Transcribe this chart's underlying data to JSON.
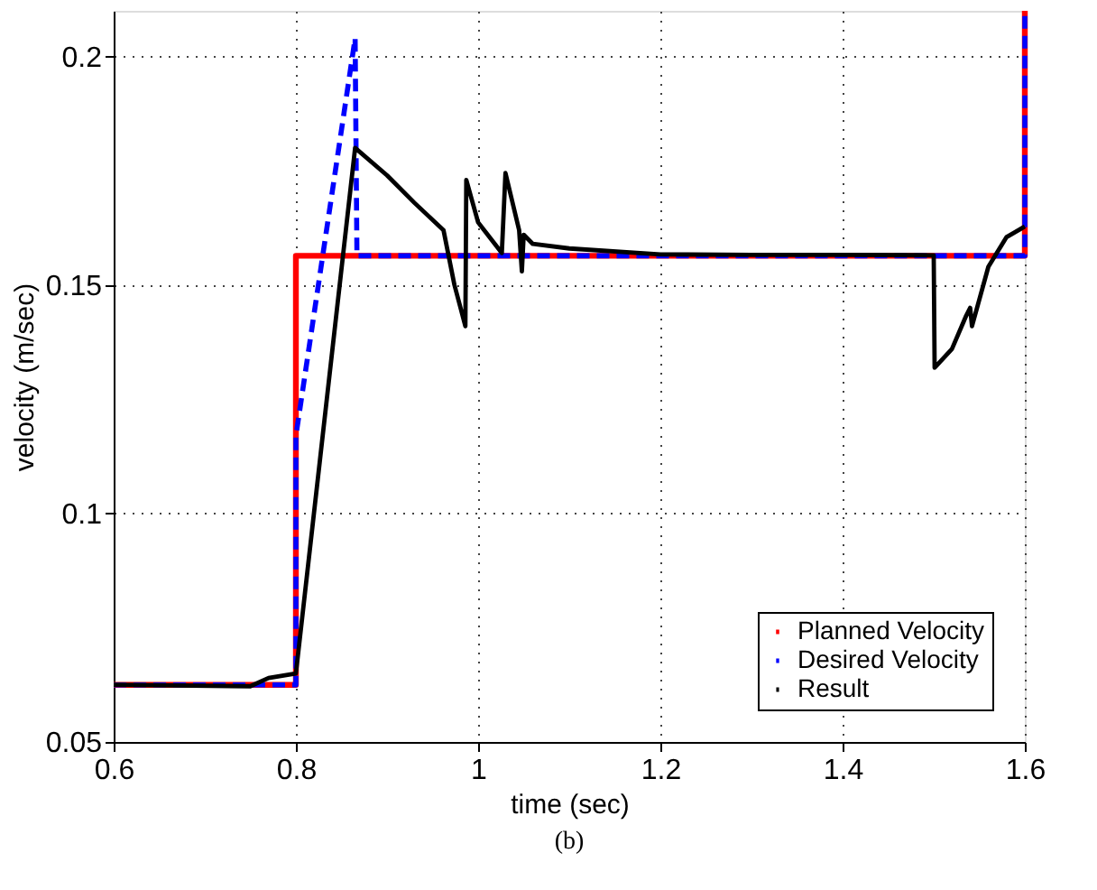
{
  "chart_data": {
    "type": "line",
    "xlabel": "time (sec)",
    "ylabel": "velocity (m/sec)",
    "xlim": [
      0.6,
      1.6
    ],
    "ylim": [
      0.05,
      0.21
    ],
    "xticks": [
      0.6,
      0.8,
      1,
      1.2,
      1.4,
      1.6
    ],
    "yticks": [
      0.05,
      0.1,
      0.15,
      0.2
    ],
    "grid": true,
    "legend": "bottom right",
    "marker": "none",
    "annotations": [
      "(b)"
    ],
    "series": [
      {
        "name": "Planned Velocity",
        "color": "#ff0000",
        "line_style": "solid",
        "x": [
          0.6,
          0.8,
          0.8,
          1.6,
          1.6
        ],
        "values": [
          0.0625,
          0.0625,
          0.1564,
          0.1564,
          0.21
        ]
      },
      {
        "name": "Desired Velocity",
        "color": "#0000ff",
        "line_style": "dashed",
        "x": [
          0.6,
          0.8,
          0.8,
          0.865,
          0.867,
          1.6,
          1.6
        ],
        "values": [
          0.0625,
          0.0625,
          0.117,
          0.204,
          0.1564,
          0.1564,
          0.21
        ]
      },
      {
        "name": "Result",
        "color": "#000000",
        "line_style": "solid",
        "x": [
          0.6,
          0.75,
          0.77,
          0.8,
          0.865,
          0.9,
          0.93,
          0.962,
          0.974,
          0.986,
          0.987,
          1.0,
          1.026,
          1.03,
          1.045,
          1.048,
          1.05,
          1.06,
          1.1,
          1.2,
          1.3,
          1.4,
          1.5,
          1.501,
          1.52,
          1.535,
          1.54,
          1.542,
          1.56,
          1.58,
          1.6
        ],
        "values": [
          0.0625,
          0.0622,
          0.064,
          0.065,
          0.18,
          0.174,
          0.168,
          0.162,
          0.15,
          0.141,
          0.173,
          0.1637,
          0.157,
          0.1745,
          0.162,
          0.153,
          0.161,
          0.159,
          0.158,
          0.1567,
          0.1566,
          0.1566,
          0.1565,
          0.1319,
          0.136,
          0.143,
          0.145,
          0.141,
          0.154,
          0.1605,
          0.1628
        ]
      }
    ]
  }
}
